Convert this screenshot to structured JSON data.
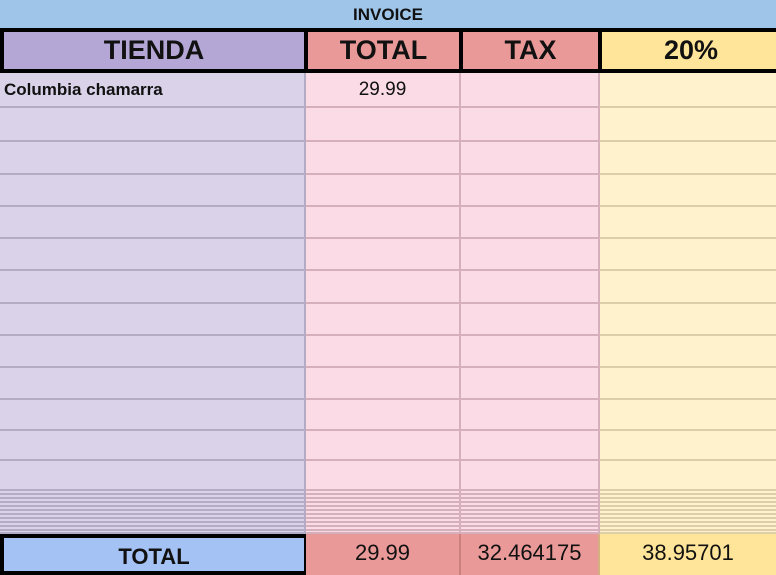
{
  "title": "INVOICE",
  "headers": [
    "TIENDA",
    "TOTAL",
    "TAX",
    "20%"
  ],
  "rows": [
    {
      "tienda": "Columbia chamarra",
      "total": "29.99",
      "tax": "",
      "pct": ""
    }
  ],
  "totals": {
    "label": "TOTAL",
    "total": "29.99",
    "tax": "32.464175",
    "pct": "38.95701"
  },
  "colors": {
    "title_bg": "#9fc5e8",
    "tienda_header": "#b4a7d6",
    "total_header": "#ea9999",
    "pct_header": "#ffe599",
    "tienda_col": "#d9d2e9",
    "total_col": "#fadbe6",
    "pct_col": "#fff2cc",
    "total_label_bg": "#a4c2f4"
  }
}
